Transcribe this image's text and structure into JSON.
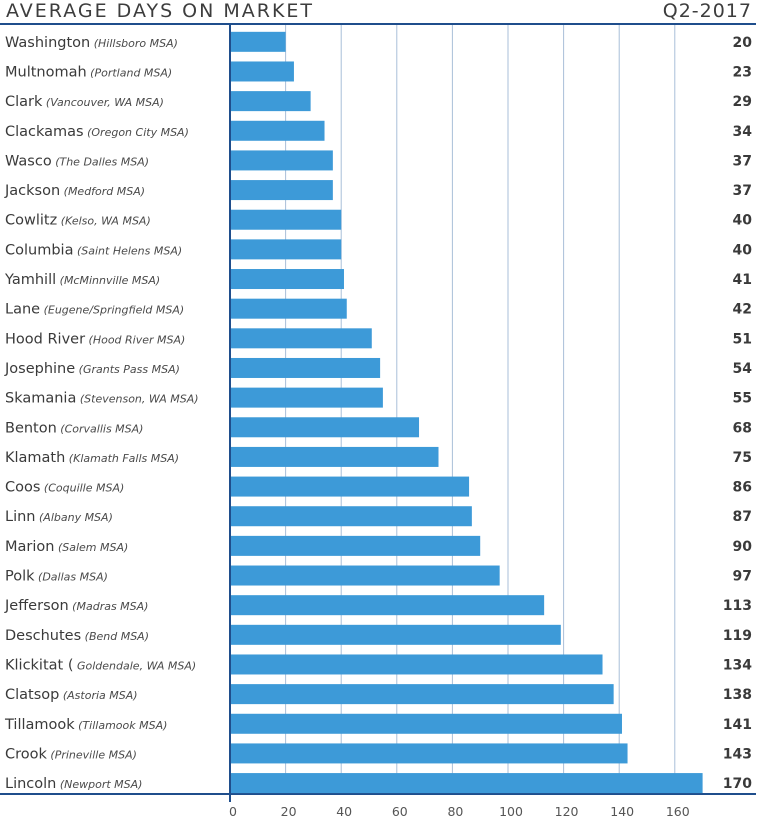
{
  "header": {
    "title": "AVERAGE DAYS ON MARKET",
    "period": "Q2-2017"
  },
  "colors": {
    "bar": "#3d9ad8",
    "axis": "#1f4e8c",
    "grid": "#a9bfd8"
  },
  "chart_data": {
    "type": "bar",
    "orientation": "horizontal",
    "title": "AVERAGE DAYS ON MARKET",
    "subtitle": "Q2-2017",
    "xlabel": "",
    "ylabel": "",
    "xlim": [
      0,
      180
    ],
    "xticks": [
      0,
      20,
      40,
      60,
      80,
      100,
      120,
      140,
      160
    ],
    "grid": true,
    "categories": [
      {
        "name": "Washington",
        "sub": "(Hillsboro MSA)"
      },
      {
        "name": "Multnomah",
        "sub": "(Portland MSA)"
      },
      {
        "name": "Clark",
        "sub": "(Vancouver, WA MSA)"
      },
      {
        "name": "Clackamas",
        "sub": "(Oregon City MSA)"
      },
      {
        "name": "Wasco",
        "sub": "(The Dalles MSA)"
      },
      {
        "name": "Jackson",
        "sub": "(Medford MSA)"
      },
      {
        "name": "Cowlitz",
        "sub": "(Kelso, WA MSA)"
      },
      {
        "name": "Columbia",
        "sub": "(Saint Helens MSA)"
      },
      {
        "name": "Yamhill",
        "sub": "(McMinnville MSA)"
      },
      {
        "name": "Lane",
        "sub": "(Eugene/Springfield MSA)"
      },
      {
        "name": "Hood River",
        "sub": "(Hood River MSA)"
      },
      {
        "name": "Josephine",
        "sub": "(Grants Pass MSA)"
      },
      {
        "name": "Skamania",
        "sub": "(Stevenson, WA MSA)"
      },
      {
        "name": "Benton",
        "sub": "(Corvallis MSA)"
      },
      {
        "name": "Klamath",
        "sub": "(Klamath Falls MSA)"
      },
      {
        "name": "Coos",
        "sub": "(Coquille MSA)"
      },
      {
        "name": "Linn",
        "sub": "(Albany MSA)"
      },
      {
        "name": "Marion",
        "sub": "(Salem MSA)"
      },
      {
        "name": "Polk",
        "sub": "(Dallas MSA)"
      },
      {
        "name": "Jefferson",
        "sub": "(Madras MSA)"
      },
      {
        "name": "Deschutes",
        "sub": "(Bend MSA)"
      },
      {
        "name": "Klickitat (",
        "sub": "Goldendale, WA MSA)"
      },
      {
        "name": "Clatsop",
        "sub": "(Astoria MSA)"
      },
      {
        "name": "Tillamook",
        "sub": "(Tillamook MSA)"
      },
      {
        "name": "Crook",
        "sub": "(Prineville MSA)"
      },
      {
        "name": "Lincoln",
        "sub": "(Newport MSA)"
      }
    ],
    "values": [
      20,
      23,
      29,
      34,
      37,
      37,
      40,
      40,
      41,
      42,
      51,
      54,
      55,
      68,
      75,
      86,
      87,
      90,
      97,
      113,
      119,
      134,
      138,
      141,
      143,
      170
    ],
    "legend": "none"
  }
}
